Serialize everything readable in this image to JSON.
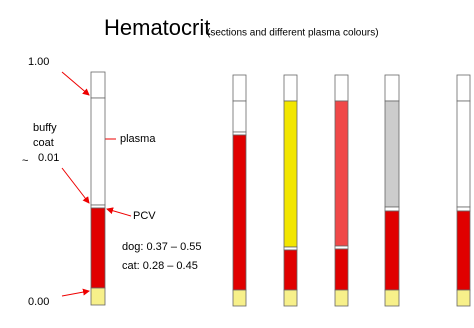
{
  "header": {
    "title": "Hematocrit",
    "subtitle": "(sections and different plasma colours)"
  },
  "labels": {
    "top": "1.00",
    "buffy_coat": [
      "buffy",
      "coat"
    ],
    "approx": "~",
    "buffy_value": "0.01",
    "plasma": "plasma",
    "pcv": "PCV",
    "dog": "dog: 0.37 – 0.55",
    "cat": "cat: 0.28 – 0.45",
    "bottom": "0.00"
  }
}
